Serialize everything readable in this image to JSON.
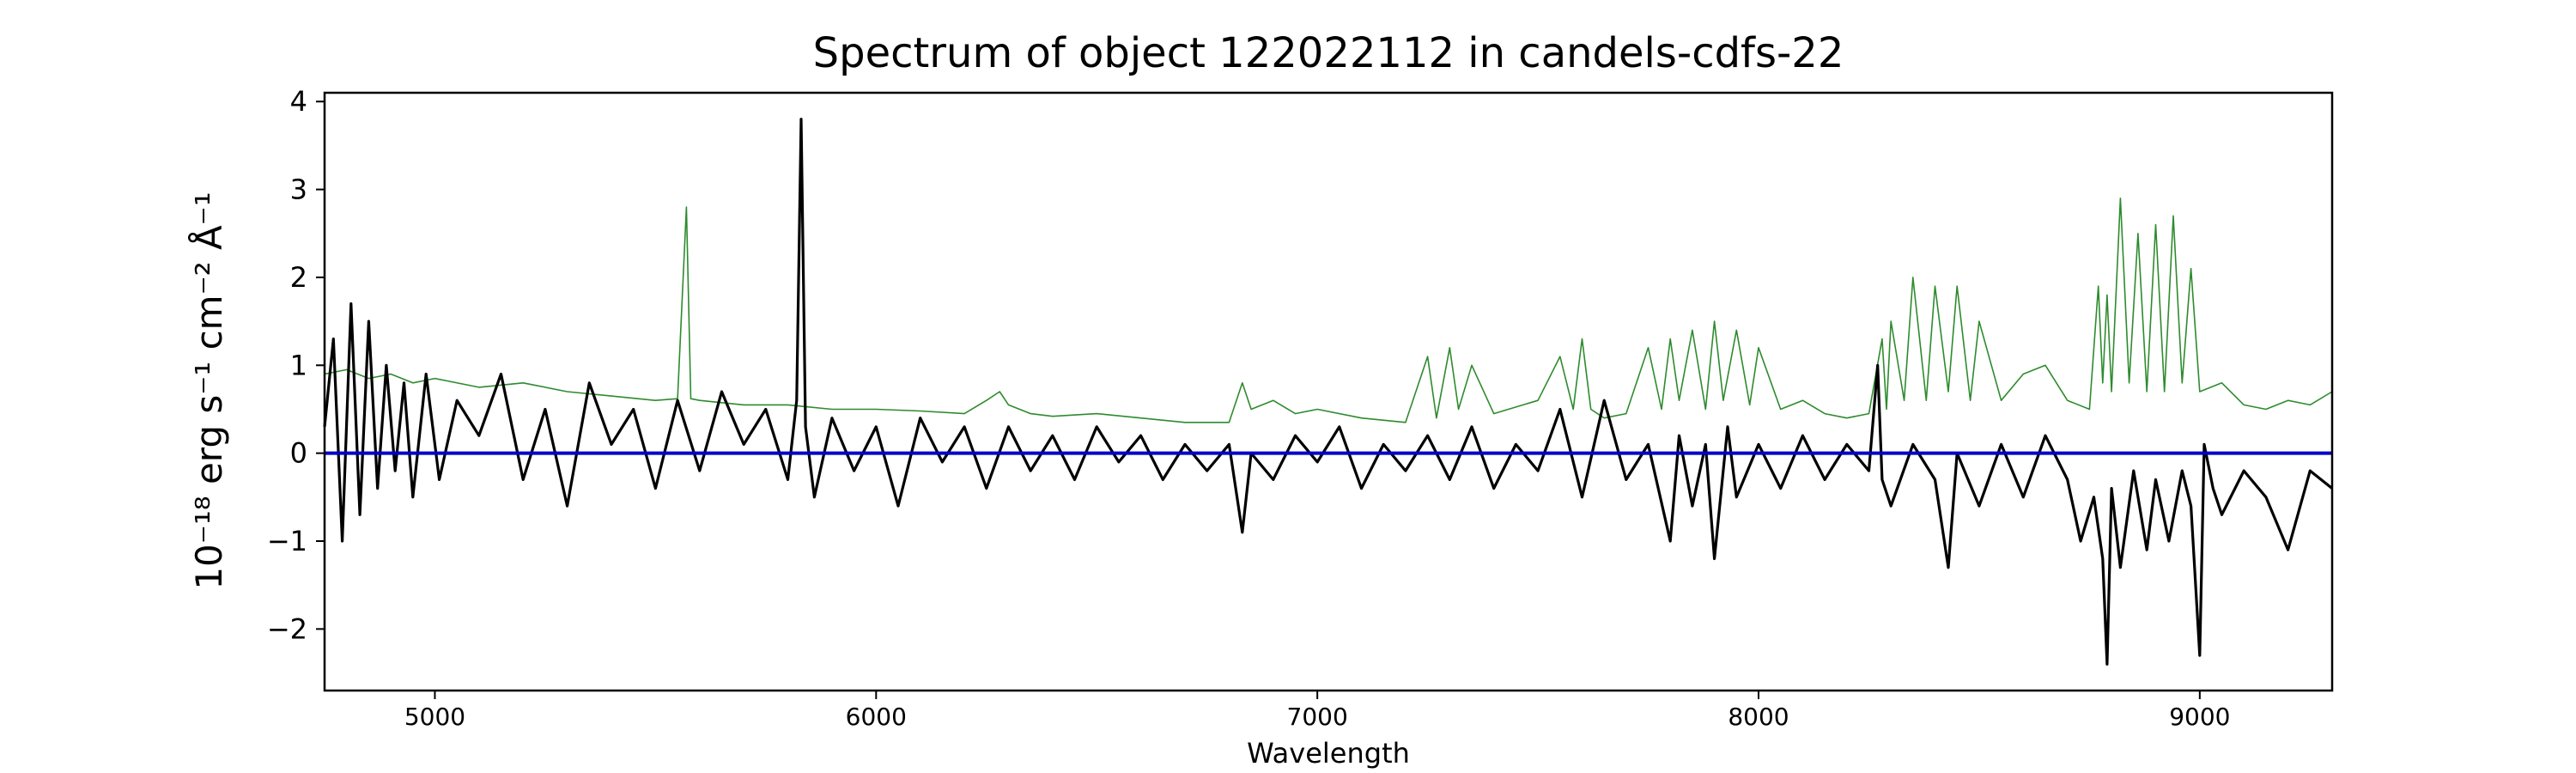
{
  "chart_data": {
    "type": "line",
    "title": "Spectrum of object 122022112 in candels-cdfs-22",
    "xlabel": "Wavelength",
    "ylabel": "10⁻¹⁸ erg s⁻¹ cm⁻² Å⁻¹",
    "xlim": [
      4750,
      9300
    ],
    "ylim": [
      -2.7,
      4.1
    ],
    "xticks": [
      5000,
      6000,
      7000,
      8000,
      9000
    ],
    "yticks": [
      -2,
      -1,
      0,
      1,
      2,
      3,
      4
    ],
    "ytick_labels": [
      "−2",
      "−1",
      "0",
      "1",
      "2",
      "3",
      "4"
    ],
    "grid": false,
    "series": [
      {
        "color": "#2e8b2e",
        "style": "thin",
        "x": [
          4750,
          4800,
          4850,
          4900,
          4950,
          5000,
          5100,
          5200,
          5300,
          5400,
          5500,
          5550,
          5570,
          5580,
          5600,
          5700,
          5800,
          5900,
          6000,
          6100,
          6200,
          6250,
          6280,
          6300,
          6350,
          6400,
          6500,
          6600,
          6700,
          6800,
          6830,
          6850,
          6900,
          6950,
          7000,
          7100,
          7200,
          7250,
          7270,
          7300,
          7320,
          7350,
          7400,
          7500,
          7550,
          7580,
          7600,
          7620,
          7650,
          7700,
          7750,
          7780,
          7800,
          7820,
          7850,
          7880,
          7900,
          7920,
          7950,
          7980,
          8000,
          8050,
          8100,
          8150,
          8200,
          8250,
          8280,
          8290,
          8300,
          8330,
          8350,
          8380,
          8400,
          8430,
          8450,
          8480,
          8500,
          8550,
          8600,
          8650,
          8700,
          8750,
          8770,
          8780,
          8790,
          8800,
          8820,
          8840,
          8860,
          8880,
          8900,
          8920,
          8940,
          8960,
          8980,
          9000,
          9050,
          9100,
          9150,
          9200,
          9250,
          9300
        ],
        "y": [
          0.9,
          0.95,
          0.85,
          0.9,
          0.8,
          0.85,
          0.75,
          0.8,
          0.7,
          0.65,
          0.6,
          0.62,
          2.8,
          0.62,
          0.6,
          0.55,
          0.55,
          0.5,
          0.5,
          0.48,
          0.45,
          0.6,
          0.7,
          0.55,
          0.45,
          0.42,
          0.45,
          0.4,
          0.35,
          0.35,
          0.8,
          0.5,
          0.6,
          0.45,
          0.5,
          0.4,
          0.35,
          1.1,
          0.4,
          1.2,
          0.5,
          1.0,
          0.45,
          0.6,
          1.1,
          0.5,
          1.3,
          0.5,
          0.4,
          0.45,
          1.2,
          0.5,
          1.3,
          0.6,
          1.4,
          0.5,
          1.5,
          0.6,
          1.4,
          0.55,
          1.2,
          0.5,
          0.6,
          0.45,
          0.4,
          0.45,
          1.3,
          0.5,
          1.5,
          0.6,
          2.0,
          0.6,
          1.9,
          0.7,
          1.9,
          0.6,
          1.5,
          0.6,
          0.9,
          1.0,
          0.6,
          0.5,
          1.9,
          0.8,
          1.8,
          0.7,
          2.9,
          0.8,
          2.5,
          0.7,
          2.6,
          0.7,
          2.7,
          0.8,
          2.1,
          0.7,
          0.8,
          0.55,
          0.5,
          0.6,
          0.55,
          0.7
        ]
      },
      {
        "color": "#000000",
        "style": "thick",
        "x": [
          4750,
          4770,
          4790,
          4810,
          4830,
          4850,
          4870,
          4890,
          4910,
          4930,
          4950,
          4980,
          5010,
          5050,
          5100,
          5150,
          5200,
          5250,
          5300,
          5350,
          5400,
          5450,
          5500,
          5550,
          5600,
          5650,
          5700,
          5750,
          5800,
          5820,
          5830,
          5840,
          5860,
          5900,
          5950,
          6000,
          6050,
          6100,
          6150,
          6200,
          6250,
          6300,
          6350,
          6400,
          6450,
          6500,
          6550,
          6600,
          6650,
          6700,
          6750,
          6800,
          6830,
          6850,
          6900,
          6950,
          7000,
          7050,
          7100,
          7150,
          7200,
          7250,
          7300,
          7350,
          7400,
          7450,
          7500,
          7550,
          7600,
          7650,
          7700,
          7750,
          7800,
          7820,
          7850,
          7880,
          7900,
          7930,
          7950,
          8000,
          8050,
          8100,
          8150,
          8200,
          8250,
          8270,
          8280,
          8300,
          8350,
          8400,
          8430,
          8450,
          8500,
          8550,
          8600,
          8650,
          8700,
          8730,
          8760,
          8780,
          8790,
          8800,
          8820,
          8850,
          8880,
          8900,
          8930,
          8960,
          8980,
          9000,
          9010,
          9030,
          9050,
          9100,
          9150,
          9200,
          9250,
          9300
        ],
        "y": [
          0.3,
          1.3,
          -1.0,
          1.7,
          -0.7,
          1.5,
          -0.4,
          1.0,
          -0.2,
          0.8,
          -0.5,
          0.9,
          -0.3,
          0.6,
          0.2,
          0.9,
          -0.3,
          0.5,
          -0.6,
          0.8,
          0.1,
          0.5,
          -0.4,
          0.6,
          -0.2,
          0.7,
          0.1,
          0.5,
          -0.3,
          0.6,
          3.8,
          0.3,
          -0.5,
          0.4,
          -0.2,
          0.3,
          -0.6,
          0.4,
          -0.1,
          0.3,
          -0.4,
          0.3,
          -0.2,
          0.2,
          -0.3,
          0.3,
          -0.1,
          0.2,
          -0.3,
          0.1,
          -0.2,
          0.1,
          -0.9,
          0.0,
          -0.3,
          0.2,
          -0.1,
          0.3,
          -0.4,
          0.1,
          -0.2,
          0.2,
          -0.3,
          0.3,
          -0.4,
          0.1,
          -0.2,
          0.5,
          -0.5,
          0.6,
          -0.3,
          0.1,
          -1.0,
          0.2,
          -0.6,
          0.1,
          -1.2,
          0.3,
          -0.5,
          0.1,
          -0.4,
          0.2,
          -0.3,
          0.1,
          -0.2,
          1.0,
          -0.3,
          -0.6,
          0.1,
          -0.3,
          -1.3,
          0.0,
          -0.6,
          0.1,
          -0.5,
          0.2,
          -0.3,
          -1.0,
          -0.5,
          -1.2,
          -2.4,
          -0.4,
          -1.3,
          -0.2,
          -1.1,
          -0.3,
          -1.0,
          -0.2,
          -0.6,
          -2.3,
          0.1,
          -0.4,
          -0.7,
          -0.2,
          -0.5,
          -1.1,
          -0.2,
          -0.4
        ]
      },
      {
        "color": "#0000cc",
        "style": "zero",
        "x": [
          4750,
          9300
        ],
        "y": [
          0,
          0
        ]
      }
    ]
  }
}
